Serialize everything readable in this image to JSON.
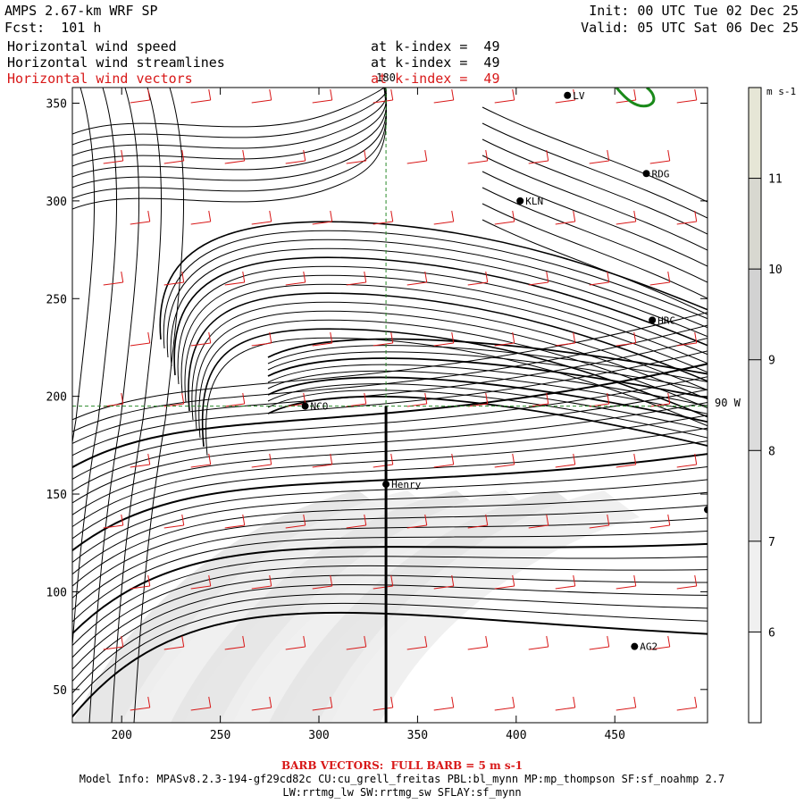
{
  "header": {
    "model": "AMPS 2.67-km WRF SP",
    "forecast": "Fcst:  101 h",
    "init": "Init: 00 UTC Tue 02 Dec 25",
    "valid": "Valid: 05 UTC Sat 06 Dec 25",
    "fields": [
      {
        "name": "Horizontal wind speed",
        "level": "at k-index =  49",
        "color": "#000000"
      },
      {
        "name": "Horizontal wind streamlines",
        "level": "at k-index =  49",
        "color": "#000000"
      },
      {
        "name": "Horizontal wind vectors",
        "level": "at k-index =  49",
        "color": "#d81818"
      }
    ]
  },
  "map": {
    "x_ticks": [
      "200",
      "250",
      "300",
      "350",
      "400",
      "450"
    ],
    "x_tick_values": [
      200,
      250,
      300,
      350,
      400,
      450
    ],
    "y_ticks": [
      "50",
      "100",
      "150",
      "200",
      "250",
      "300",
      "350"
    ],
    "y_tick_values": [
      50,
      100,
      150,
      200,
      250,
      300,
      350
    ],
    "xlim": [
      175,
      497
    ],
    "ylim": [
      33,
      358
    ],
    "grid_lon_labels": {
      "top": "180",
      "right": "90 W"
    },
    "cross_section_x": 334,
    "cross_section_y": [
      33,
      195
    ],
    "guide_x": 334,
    "guide_y": 195,
    "stations": [
      {
        "label": "NCO",
        "x": 293,
        "y": 195
      },
      {
        "label": "Henry",
        "x": 334,
        "y": 155
      },
      {
        "label": "KLN",
        "x": 402,
        "y": 300
      },
      {
        "label": "RDG",
        "x": 466,
        "y": 314
      },
      {
        "label": "HRC",
        "x": 469,
        "y": 239
      },
      {
        "label": "AG2",
        "x": 460,
        "y": 72
      },
      {
        "label": "LV",
        "x": 426,
        "y": 354
      },
      {
        "label": "",
        "x": 497,
        "y": 142
      }
    ]
  },
  "colorbar": {
    "units": "m s-1",
    "tick_labels": [
      "6",
      "7",
      "8",
      "9",
      "10",
      "11"
    ],
    "tick_values": [
      6,
      7,
      8,
      9,
      10,
      11
    ],
    "range": [
      5,
      12
    ],
    "colors": [
      "#ffffff",
      "#f0f0f0",
      "#e6e6e6",
      "#dcdcdc",
      "#d2d2d2",
      "#d8d8d0",
      "#e6e6d6"
    ]
  },
  "footer": {
    "barb_note": "BARB VECTORS:  FULL BARB = 5 m s-1",
    "model_info": "Model Info: MPASv8.2.3-194-gf29cd82c CU:cu_grell_freitas PBL:bl_mynn MP:mp_thompson SF:sf_noahmp 2.7",
    "model_info2": "LW:rrtmg_lw SW:rrtmg_sw SFLAY:sf_mynn"
  }
}
